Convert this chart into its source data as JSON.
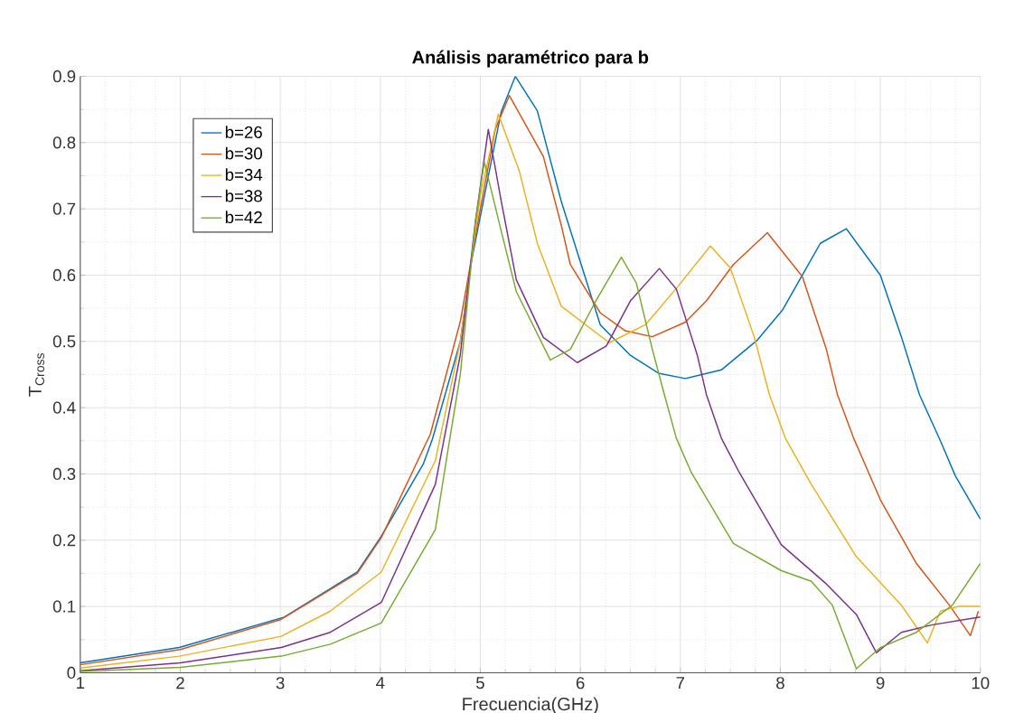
{
  "chart_data": {
    "type": "line",
    "title": "Análisis paramétrico para b",
    "xlabel": "Frecuencia(GHz)",
    "ylabel": "T$_{Cross}$",
    "xlim": [
      1,
      10
    ],
    "ylim": [
      0,
      0.9
    ],
    "xticks": [
      1,
      2,
      3,
      4,
      5,
      6,
      7,
      8,
      9,
      10
    ],
    "yticks": [
      0,
      0.1,
      0.2,
      0.3,
      0.4,
      0.5,
      0.6,
      0.7,
      0.8,
      0.9
    ],
    "grid": true,
    "legend": "top left",
    "marker": "none",
    "line_style": "solid",
    "series": [
      {
        "name": "b=26",
        "color": "#0072bd",
        "x": [
          1,
          1.99,
          3.04,
          3.77,
          4.01,
          4.43,
          4.52,
          4.8,
          4.91,
          5.09,
          5.21,
          5.35,
          5.57,
          5.81,
          6.0,
          6.2,
          6.5,
          6.78,
          7.05,
          7.41,
          7.77,
          8.02,
          8.22,
          8.4,
          8.66,
          9.0,
          9.21,
          9.39,
          9.6,
          9.75,
          10
        ],
        "values": [
          0.015,
          0.038,
          0.084,
          0.152,
          0.206,
          0.315,
          0.352,
          0.5,
          0.62,
          0.757,
          0.847,
          0.9,
          0.848,
          0.711,
          0.62,
          0.525,
          0.479,
          0.452,
          0.444,
          0.457,
          0.502,
          0.547,
          0.6,
          0.648,
          0.67,
          0.6,
          0.507,
          0.42,
          0.35,
          0.297,
          0.232
        ]
      },
      {
        "name": "b=30",
        "color": "#d95319",
        "x": [
          1,
          2,
          3,
          3.77,
          4.01,
          4.5,
          4.8,
          5.0,
          5.15,
          5.29,
          5.63,
          5.81,
          5.9,
          6.2,
          6.45,
          6.72,
          7.05,
          7.26,
          7.53,
          7.87,
          8.22,
          8.46,
          8.57,
          8.73,
          9.0,
          9.36,
          9.69,
          9.9,
          9.98
        ],
        "values": [
          0.012,
          0.035,
          0.08,
          0.15,
          0.204,
          0.36,
          0.53,
          0.7,
          0.82,
          0.871,
          0.779,
          0.675,
          0.616,
          0.543,
          0.516,
          0.507,
          0.529,
          0.561,
          0.616,
          0.664,
          0.598,
          0.488,
          0.42,
          0.355,
          0.261,
          0.165,
          0.102,
          0.056,
          0.093
        ]
      },
      {
        "name": "b=34",
        "color": "#edb120",
        "x": [
          1,
          1.99,
          3.01,
          3.5,
          4.01,
          4.55,
          4.8,
          5.0,
          5.18,
          5.39,
          5.57,
          5.81,
          6.29,
          6.65,
          6.96,
          7.3,
          7.5,
          7.74,
          7.89,
          8.05,
          8.31,
          8.76,
          9.21,
          9.47,
          9.6,
          9.78,
          10
        ],
        "values": [
          0.007,
          0.025,
          0.055,
          0.093,
          0.152,
          0.32,
          0.5,
          0.72,
          0.843,
          0.757,
          0.648,
          0.553,
          0.498,
          0.525,
          0.58,
          0.644,
          0.611,
          0.506,
          0.42,
          0.354,
          0.284,
          0.175,
          0.102,
          0.045,
          0.093,
          0.1,
          0.1
        ]
      },
      {
        "name": "b=38",
        "color": "#7e2f8e",
        "x": [
          1,
          2,
          3.01,
          3.5,
          4.01,
          4.55,
          4.8,
          4.95,
          5.08,
          5.21,
          5.36,
          5.63,
          5.97,
          6.26,
          6.5,
          6.79,
          6.96,
          7.17,
          7.26,
          7.41,
          7.59,
          8.01,
          8.46,
          8.76,
          8.96,
          9.21,
          9.51,
          10
        ],
        "values": [
          0.003,
          0.015,
          0.038,
          0.061,
          0.106,
          0.284,
          0.48,
          0.68,
          0.82,
          0.711,
          0.593,
          0.506,
          0.468,
          0.493,
          0.561,
          0.61,
          0.579,
          0.479,
          0.42,
          0.354,
          0.302,
          0.193,
          0.134,
          0.088,
          0.03,
          0.061,
          0.072,
          0.084
        ]
      },
      {
        "name": "b=42",
        "color": "#77ac30",
        "x": [
          1,
          2,
          3.01,
          3.5,
          4.01,
          4.55,
          4.67,
          4.8,
          4.95,
          5.04,
          5.21,
          5.36,
          5.7,
          5.9,
          6.14,
          6.41,
          6.56,
          6.72,
          6.84,
          6.96,
          7.11,
          7.53,
          8.01,
          8.31,
          8.52,
          8.76,
          9.0,
          9.36,
          9.72,
          10
        ],
        "values": [
          0.002,
          0.008,
          0.025,
          0.043,
          0.075,
          0.216,
          0.33,
          0.45,
          0.68,
          0.771,
          0.666,
          0.575,
          0.472,
          0.488,
          0.557,
          0.627,
          0.588,
          0.488,
          0.42,
          0.354,
          0.302,
          0.195,
          0.154,
          0.138,
          0.102,
          0.006,
          0.038,
          0.061,
          0.102,
          0.165
        ]
      }
    ]
  }
}
